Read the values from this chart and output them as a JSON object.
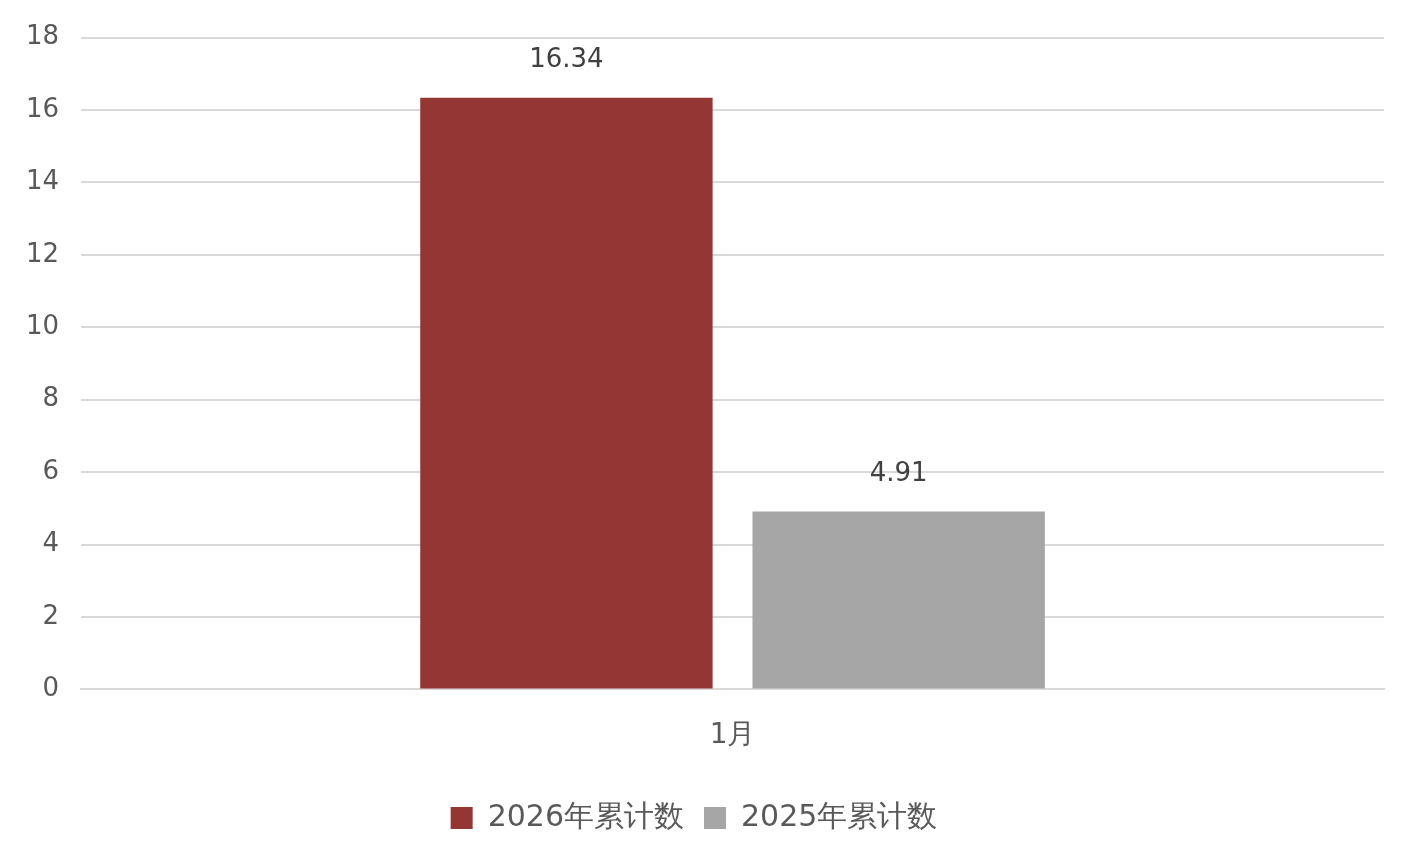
{
  "chart_data": {
    "type": "bar",
    "categories": [
      "1月"
    ],
    "series": [
      {
        "name": "2026年累计数",
        "color": "#943634",
        "values": [
          16.34
        ]
      },
      {
        "name": "2025年累计数",
        "color": "#a6a6a6",
        "values": [
          4.91
        ]
      }
    ],
    "ylim": [
      0,
      18
    ],
    "yticks": [
      0,
      2,
      4,
      6,
      8,
      10,
      12,
      14,
      16,
      18
    ],
    "grid": "y",
    "legend": "bottom",
    "data_labels": true
  }
}
